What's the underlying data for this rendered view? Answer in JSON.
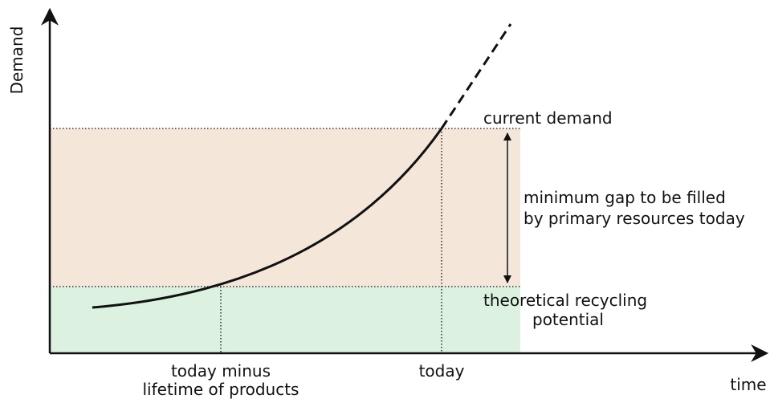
{
  "axes": {
    "y_label": "Demand",
    "x_label": "time"
  },
  "annotations": {
    "current_demand": "current demand",
    "gap": [
      "minimum gap to be filled",
      "by primary resources today"
    ],
    "recycling": [
      "theoretical recycling",
      "potential"
    ],
    "past": [
      "today minus",
      "lifetime of products"
    ],
    "today": "today"
  }
}
